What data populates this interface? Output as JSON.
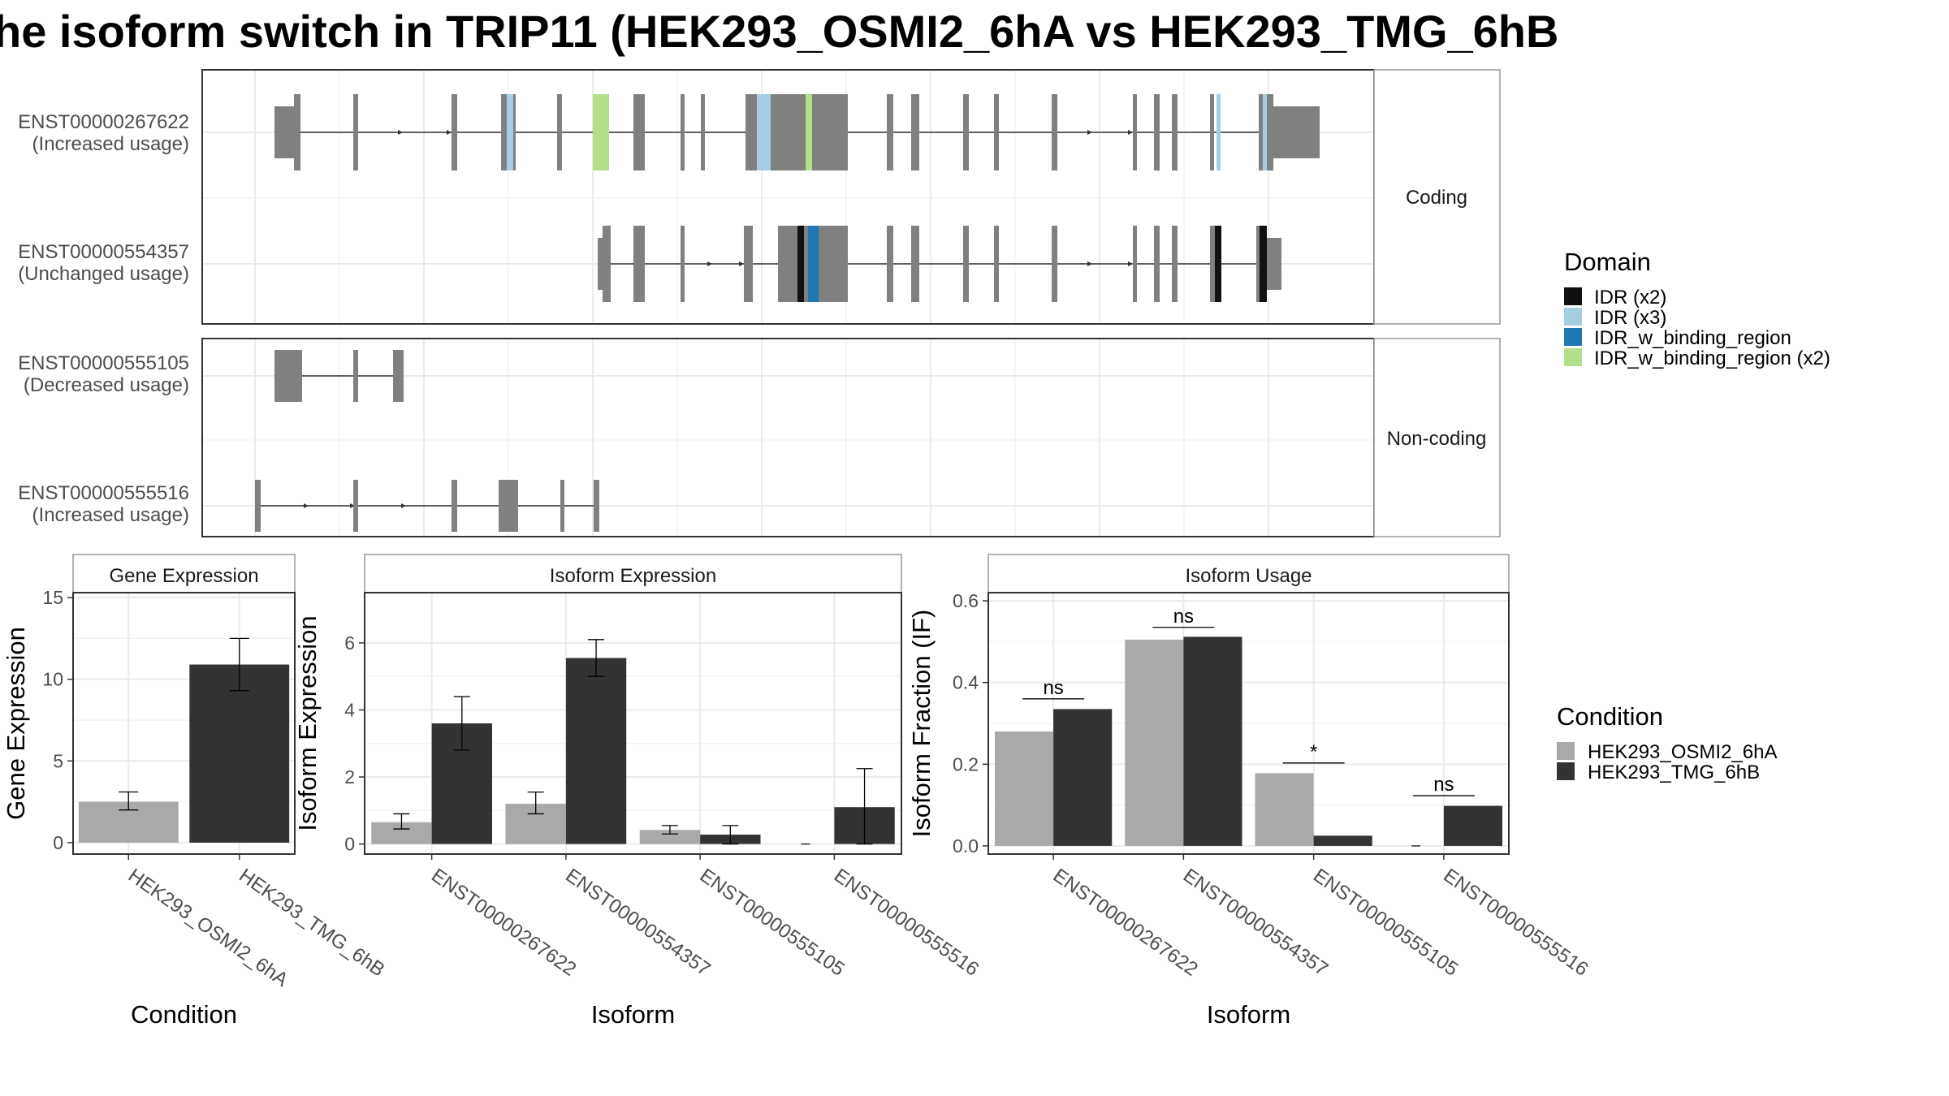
{
  "title": "he isoform switch in TRIP11 (HEK293_OSMI2_6hA vs HEK293_TMG_6hB",
  "colors": {
    "exon": "#808080",
    "idr_x2": "#111111",
    "idr_x3": "#a6cee3",
    "idr_w_binding_region": "#1f78b4",
    "idr_w_binding_region_x2": "#b2df8a",
    "cond_a": "#a9a9a9",
    "cond_b": "#333333",
    "grid": "#ebebeb",
    "panel_border": "#333333",
    "strip_fill": "#ffffff"
  },
  "structure": {
    "facets": [
      "Coding",
      "Non-coding"
    ],
    "isoforms": [
      {
        "id": "ENST00000267622",
        "usage": "(Increased usage)",
        "group": "Coding"
      },
      {
        "id": "ENST00000554357",
        "usage": "(Unchanged usage)",
        "group": "Coding"
      },
      {
        "id": "ENST00000555105",
        "usage": "(Decreased usage)",
        "group": "Non-coding"
      },
      {
        "id": "ENST00000555516",
        "usage": "(Increased usage)",
        "group": "Non-coding"
      }
    ]
  },
  "legend_domain": {
    "title": "Domain",
    "items": [
      "IDR (x2)",
      "IDR (x3)",
      "IDR_w_binding_region",
      "IDR_w_binding_region (x2)"
    ]
  },
  "legend_condition": {
    "title": "Condition",
    "items": [
      "HEK293_OSMI2_6hA",
      "HEK293_TMG_6hB"
    ]
  },
  "chart_data": [
    {
      "type": "bar",
      "strip": "Gene Expression",
      "categories": [
        "HEK293_OSMI2_6hA",
        "HEK293_TMG_6hB"
      ],
      "values": [
        2.5,
        10.9
      ],
      "errors": [
        [
          2.0,
          3.1
        ],
        [
          9.3,
          12.5
        ]
      ],
      "xlabel": "Condition",
      "ylabel": "Gene Expression",
      "ylim": [
        -0.7,
        15.3
      ],
      "yticks": [
        0,
        5,
        10,
        15
      ]
    },
    {
      "type": "bar",
      "strip": "Isoform Expression",
      "categories": [
        "ENST00000267622",
        "ENST00000554357",
        "ENST00000555105",
        "ENST00000555516"
      ],
      "series": [
        {
          "name": "HEK293_OSMI2_6hA",
          "values": [
            0.65,
            1.2,
            0.42,
            0.0
          ],
          "errors": [
            [
              0.45,
              0.9
            ],
            [
              0.9,
              1.55
            ],
            [
              0.3,
              0.55
            ],
            [
              0.0,
              0.0
            ]
          ]
        },
        {
          "name": "HEK293_TMG_6hB",
          "values": [
            3.6,
            5.55,
            0.28,
            1.1
          ],
          "errors": [
            [
              2.8,
              4.4
            ],
            [
              5.0,
              6.1
            ],
            [
              0.0,
              0.55
            ],
            [
              0.0,
              2.25
            ]
          ]
        }
      ],
      "xlabel": "Isoform",
      "ylabel": "Isoform Expression",
      "ylim": [
        -0.3,
        7.5
      ],
      "yticks": [
        0,
        2,
        4,
        6
      ]
    },
    {
      "type": "bar",
      "strip": "Isoform Usage",
      "categories": [
        "ENST00000267622",
        "ENST00000554357",
        "ENST00000555105",
        "ENST00000555516"
      ],
      "series": [
        {
          "name": "HEK293_OSMI2_6hA",
          "values": [
            0.28,
            0.505,
            0.178,
            0.0
          ]
        },
        {
          "name": "HEK293_TMG_6hB",
          "values": [
            0.335,
            0.512,
            0.025,
            0.098
          ]
        }
      ],
      "significance": [
        "ns",
        "ns",
        "*",
        "ns"
      ],
      "significance_y": [
        0.36,
        0.535,
        0.203,
        0.123
      ],
      "xlabel": "Isoform",
      "ylabel": "Isoform Fraction (IF)",
      "ylim": [
        -0.02,
        0.62
      ],
      "yticks": [
        0.0,
        0.2,
        0.4,
        0.6
      ],
      "ytick_labels": [
        "0.0",
        "0.2",
        "0.4",
        "0.6"
      ]
    }
  ]
}
